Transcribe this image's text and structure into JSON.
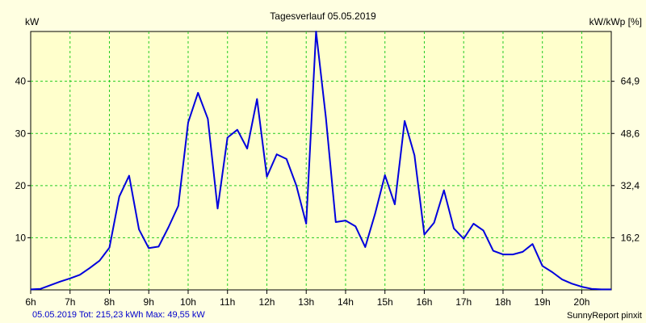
{
  "chart_data": {
    "type": "line",
    "title": "Tagesverlauf 05.05.2019",
    "ylabel_left": "kW",
    "ylabel_right": "kW/kWp [%]",
    "x_ticks": [
      "6h",
      "7h",
      "8h",
      "9h",
      "10h",
      "11h",
      "12h",
      "13h",
      "14h",
      "15h",
      "16h",
      "17h",
      "18h",
      "19h",
      "20h"
    ],
    "xlim": [
      6,
      20.75
    ],
    "ylim": [
      0,
      49.55
    ],
    "y_ticks_left": [
      "10",
      "20",
      "30",
      "40"
    ],
    "y_tick_values_left": [
      10,
      20,
      30,
      40
    ],
    "y_ticks_right": [
      "16,2",
      "32,4",
      "48,6",
      "64,9"
    ],
    "grid": true,
    "line_color": "#0000dd",
    "grid_color": "#22cc22",
    "series": [
      {
        "x": [
          6.0,
          6.25,
          6.5,
          6.75,
          7.0,
          7.25,
          7.5,
          7.75,
          8.0,
          8.25,
          8.5,
          8.75,
          9.0,
          9.25,
          9.5,
          9.75,
          10.0,
          10.25,
          10.5,
          10.75,
          11.0,
          11.25,
          11.5,
          11.75,
          12.0,
          12.25,
          12.5,
          12.75,
          13.0,
          13.25,
          13.5,
          13.75,
          14.0,
          14.25,
          14.5,
          14.75,
          15.0,
          15.25,
          15.5,
          15.75,
          16.0,
          16.25,
          16.5,
          16.75,
          17.0,
          17.25,
          17.5,
          17.75,
          18.0,
          18.25,
          18.5,
          18.75,
          19.0,
          19.25,
          19.5,
          19.75,
          20.0,
          20.25,
          20.5,
          20.75
        ],
        "values": [
          0.1,
          0.2,
          0.9,
          1.6,
          2.2,
          2.9,
          4.2,
          5.6,
          8.1,
          17.9,
          21.9,
          11.6,
          8.0,
          8.3,
          12.0,
          16.1,
          32.1,
          37.8,
          32.8,
          15.6,
          29.2,
          30.7,
          27.1,
          36.6,
          21.7,
          26.0,
          25.1,
          20.0,
          12.7,
          49.55,
          33.0,
          13.0,
          13.3,
          12.2,
          8.2,
          14.6,
          22.0,
          16.4,
          32.4,
          25.8,
          10.6,
          12.9,
          19.1,
          11.8,
          9.8,
          12.7,
          11.4,
          7.5,
          6.8,
          6.8,
          7.3,
          8.8,
          4.6,
          3.4,
          2.0,
          1.2,
          0.6,
          0.2,
          0.1,
          0.1
        ]
      }
    ]
  },
  "footer": {
    "summary": "05.05.2019 Tot: 215,23 kWh Max: 49,55 kW",
    "brand": "SunnyReport pinxit"
  }
}
